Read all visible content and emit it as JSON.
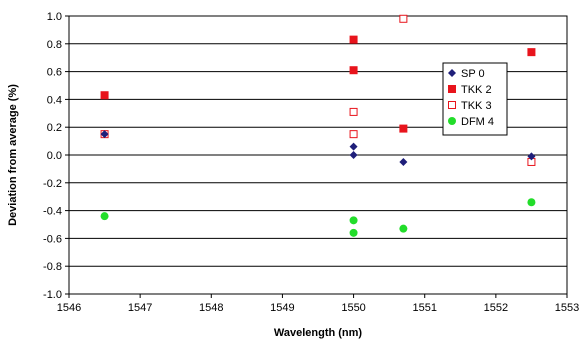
{
  "chart_data": {
    "type": "scatter",
    "xlabel": "Wavelength (nm)",
    "ylabel": "Deviation from average (%)",
    "xlim": [
      1546,
      1553
    ],
    "ylim": [
      -1.0,
      1.0
    ],
    "x_ticks": [
      "1546",
      "1547",
      "1548",
      "1549",
      "1550",
      "1551",
      "1552",
      "1553"
    ],
    "y_ticks": [
      "1.0",
      "0.8",
      "0.6",
      "0.4",
      "0.2",
      "0.0",
      "-0.2",
      "-0.4",
      "-0.6",
      "-0.8",
      "-1.0"
    ],
    "grid": "horizontal",
    "legend_position": "right",
    "series": [
      {
        "name": "SP 0",
        "marker": "diamond",
        "color": "#1f1f7a",
        "points": [
          [
            1546.5,
            0.15
          ],
          [
            1550.0,
            0.06
          ],
          [
            1550.0,
            0.0
          ],
          [
            1550.7,
            -0.05
          ],
          [
            1552.5,
            -0.01
          ]
        ]
      },
      {
        "name": "TKK 2",
        "marker": "square-filled",
        "color": "#e8141c",
        "points": [
          [
            1546.5,
            0.43
          ],
          [
            1550.0,
            0.83
          ],
          [
            1550.0,
            0.61
          ],
          [
            1550.7,
            0.19
          ],
          [
            1552.5,
            0.74
          ]
        ]
      },
      {
        "name": "TKK 3",
        "marker": "square-open",
        "color": "#e8141c",
        "points": [
          [
            1546.5,
            0.15
          ],
          [
            1550.0,
            0.31
          ],
          [
            1550.0,
            0.15
          ],
          [
            1550.7,
            0.98
          ],
          [
            1552.5,
            -0.05
          ]
        ]
      },
      {
        "name": "DFM 4",
        "marker": "circle",
        "color": "#22dd2a",
        "points": [
          [
            1546.5,
            -0.44
          ],
          [
            1550.0,
            -0.47
          ],
          [
            1550.0,
            -0.56
          ],
          [
            1550.7,
            -0.53
          ],
          [
            1552.5,
            -0.34
          ]
        ]
      }
    ]
  }
}
